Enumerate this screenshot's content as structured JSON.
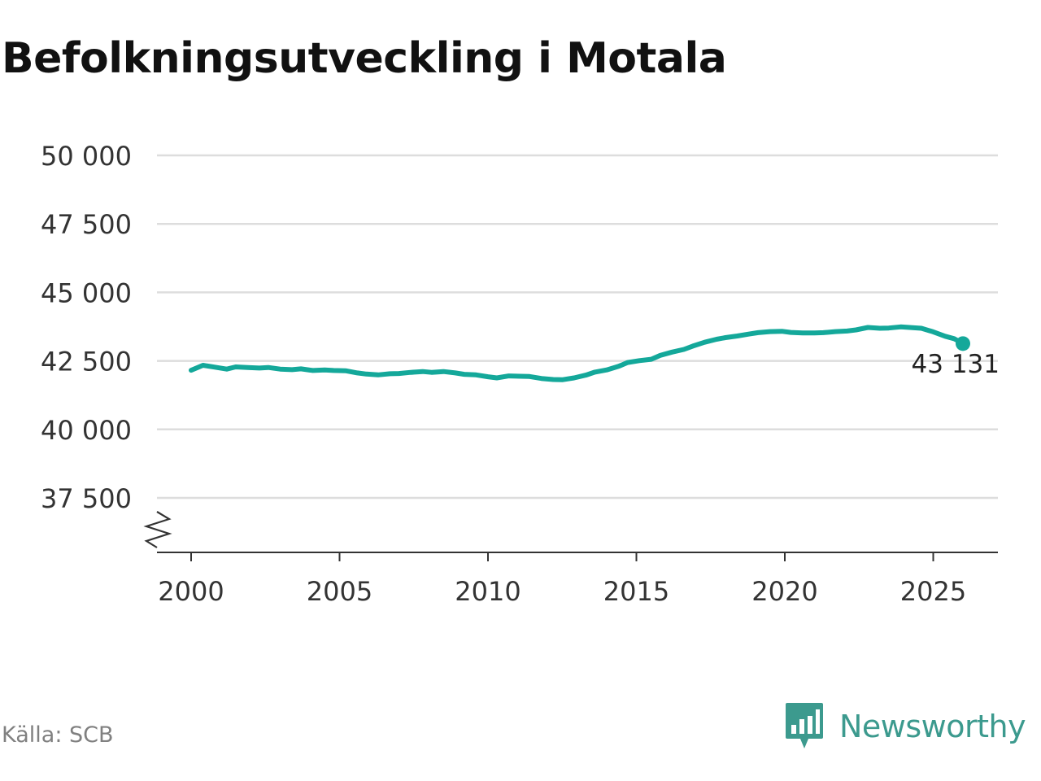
{
  "title": "Befolkningsutveckling i Motala",
  "source": "Källa: SCB",
  "brand": {
    "name": "Newsworthy",
    "icon": "newsworthy-logo-icon",
    "color": "#3c9a8e"
  },
  "colors": {
    "line": "#14a89a",
    "grid": "#dddddd",
    "axis": "#333333",
    "text": "#333333"
  },
  "chart_data": {
    "type": "line",
    "title": "Befolkningsutveckling i Motala",
    "xlabel": "",
    "ylabel": "",
    "xlim": [
      1999.5,
      2027.7
    ],
    "ylim": [
      35500,
      50000
    ],
    "y_axis_break": true,
    "grid": "horizontal",
    "y_ticks": [
      37500,
      40000,
      42500,
      45000,
      47500,
      50000
    ],
    "y_tick_labels": [
      "37 500",
      "40 000",
      "42 500",
      "45 000",
      "47 500",
      "50 000"
    ],
    "x_ticks": [
      2000,
      2005,
      2010,
      2015,
      2020,
      2025
    ],
    "x_tick_labels": [
      "2000",
      "2005",
      "2010",
      "2015",
      "2020",
      "2025"
    ],
    "end_label": "43 131",
    "series": [
      {
        "x": [
          2000.0,
          2000.4,
          2000.8,
          2001.2,
          2001.5,
          2001.9,
          2002.3,
          2002.6,
          2003.0,
          2003.4,
          2003.7,
          2004.1,
          2004.5,
          2004.8,
          2005.2,
          2005.6,
          2005.9,
          2006.3,
          2006.7,
          2007.0,
          2007.4,
          2007.8,
          2008.1,
          2008.5,
          2008.9,
          2009.2,
          2009.6,
          2010.0,
          2010.3,
          2010.7,
          2011.1,
          2011.4,
          2011.8,
          2012.2,
          2012.5,
          2012.9,
          2013.3,
          2013.6,
          2014.0,
          2014.4,
          2014.7,
          2015.1,
          2015.5,
          2015.8,
          2016.2,
          2016.6,
          2016.9,
          2017.3,
          2017.7,
          2018.0,
          2018.4,
          2018.8,
          2019.1,
          2019.5,
          2019.9,
          2020.2,
          2020.6,
          2021.0,
          2021.3,
          2021.7,
          2022.1,
          2022.4,
          2022.8,
          2023.2,
          2023.5,
          2023.9,
          2024.3,
          2024.6,
          2025.0,
          2025.4,
          2025.7,
          2026.0
        ],
        "values": [
          42160,
          42340,
          42270,
          42200,
          42280,
          42260,
          42240,
          42260,
          42200,
          42180,
          42210,
          42150,
          42170,
          42150,
          42140,
          42060,
          42020,
          41990,
          42030,
          42040,
          42080,
          42110,
          42080,
          42110,
          42060,
          42010,
          41990,
          41920,
          41880,
          41950,
          41940,
          41930,
          41860,
          41820,
          41810,
          41880,
          41980,
          42090,
          42170,
          42300,
          42440,
          42510,
          42560,
          42700,
          42820,
          42920,
          43040,
          43180,
          43290,
          43350,
          43410,
          43480,
          43530,
          43570,
          43580,
          43540,
          43520,
          43520,
          43530,
          43570,
          43590,
          43630,
          43720,
          43690,
          43700,
          43740,
          43710,
          43690,
          43560,
          43400,
          43310,
          43131
        ]
      }
    ]
  }
}
